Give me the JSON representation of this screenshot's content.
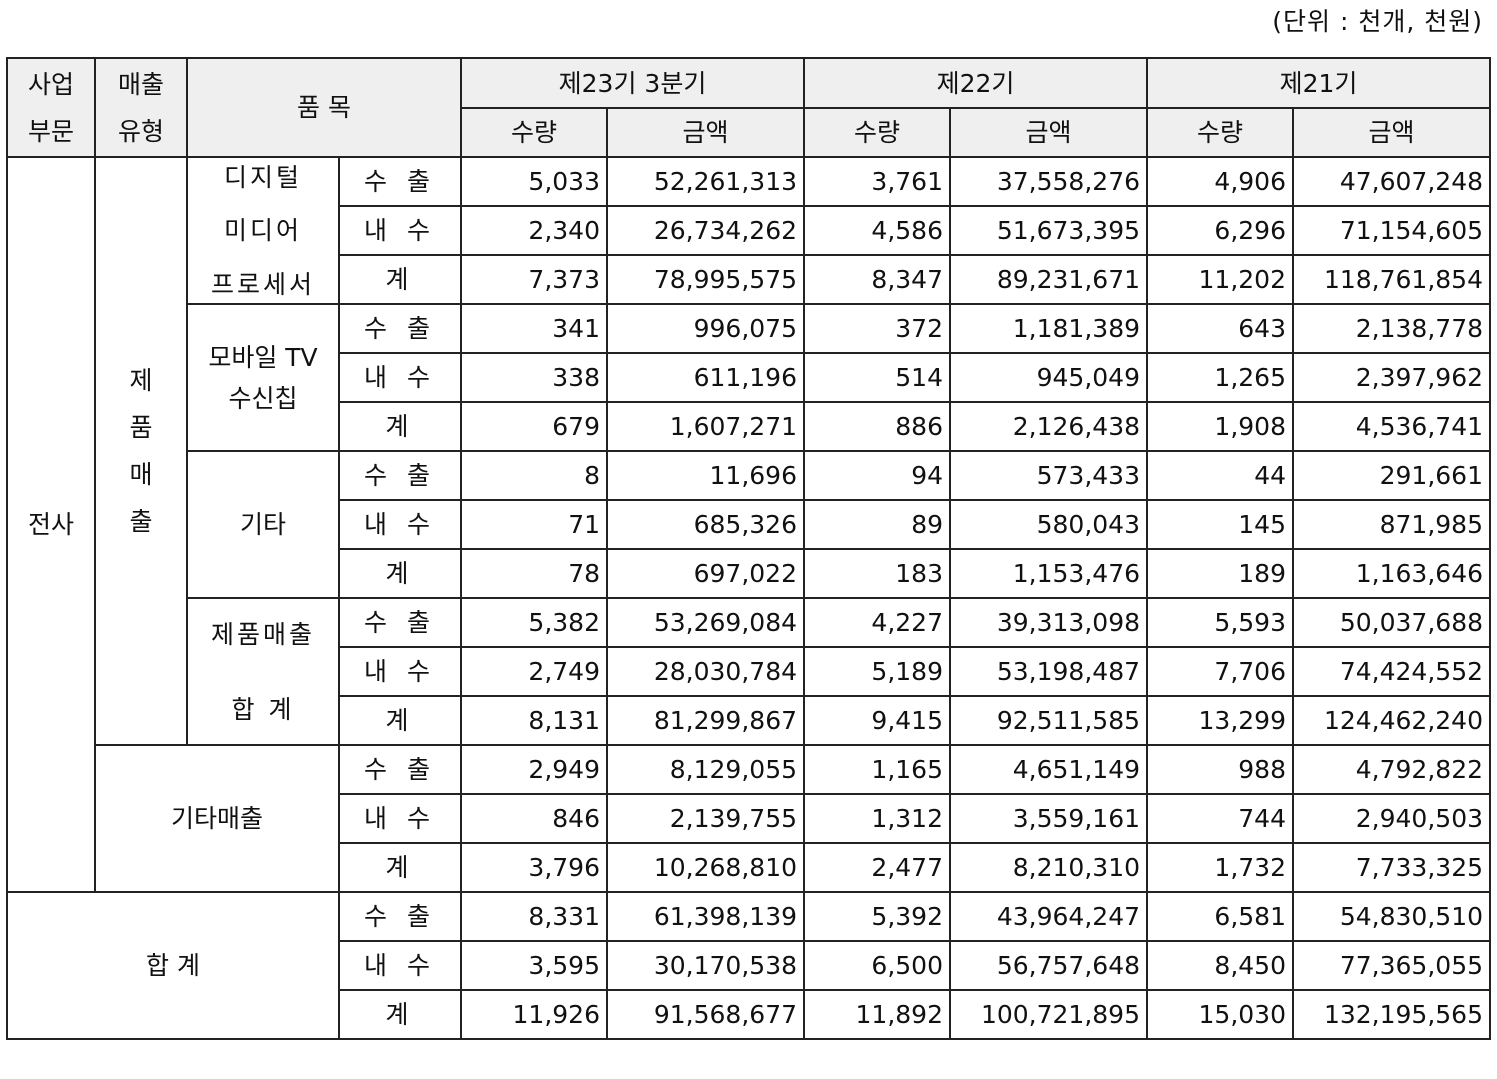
{
  "unit_note": "(단위 : 천개, 천원)",
  "header": {
    "segment_top": "사업",
    "segment_bottom": "부문",
    "type_top": "매출",
    "type_bottom": "유형",
    "item": "품 목",
    "periods": [
      "제23기 3분기",
      "제22기",
      "제21기"
    ],
    "qty": "수량",
    "amt": "금액"
  },
  "labels": {
    "company": "전사",
    "product_sales": [
      "제",
      "품",
      "매",
      "출"
    ],
    "digital": [
      "디지털",
      "미디어",
      "프로세서"
    ],
    "mobile": [
      "모바일 TV",
      "수신칩"
    ],
    "etc": "기타",
    "product_total_top": "제품매출",
    "product_total_bottom": "합 계",
    "other_sales": "기타매출",
    "grand_total": "합 계",
    "export": "수 출",
    "domestic": "내 수",
    "sum": "계"
  },
  "rows": [
    [
      "5,033",
      "52,261,313",
      "3,761",
      "37,558,276",
      "4,906",
      "47,607,248"
    ],
    [
      "2,340",
      "26,734,262",
      "4,586",
      "51,673,395",
      "6,296",
      "71,154,605"
    ],
    [
      "7,373",
      "78,995,575",
      "8,347",
      "89,231,671",
      "11,202",
      "118,761,854"
    ],
    [
      "341",
      "996,075",
      "372",
      "1,181,389",
      "643",
      "2,138,778"
    ],
    [
      "338",
      "611,196",
      "514",
      "945,049",
      "1,265",
      "2,397,962"
    ],
    [
      "679",
      "1,607,271",
      "886",
      "2,126,438",
      "1,908",
      "4,536,741"
    ],
    [
      "8",
      "11,696",
      "94",
      "573,433",
      "44",
      "291,661"
    ],
    [
      "71",
      "685,326",
      "89",
      "580,043",
      "145",
      "871,985"
    ],
    [
      "78",
      "697,022",
      "183",
      "1,153,476",
      "189",
      "1,163,646"
    ],
    [
      "5,382",
      "53,269,084",
      "4,227",
      "39,313,098",
      "5,593",
      "50,037,688"
    ],
    [
      "2,749",
      "28,030,784",
      "5,189",
      "53,198,487",
      "7,706",
      "74,424,552"
    ],
    [
      "8,131",
      "81,299,867",
      "9,415",
      "92,511,585",
      "13,299",
      "124,462,240"
    ],
    [
      "2,949",
      "8,129,055",
      "1,165",
      "4,651,149",
      "988",
      "4,792,822"
    ],
    [
      "846",
      "2,139,755",
      "1,312",
      "3,559,161",
      "744",
      "2,940,503"
    ],
    [
      "3,796",
      "10,268,810",
      "2,477",
      "8,210,310",
      "1,732",
      "7,733,325"
    ],
    [
      "8,331",
      "61,398,139",
      "5,392",
      "43,964,247",
      "6,581",
      "54,830,510"
    ],
    [
      "3,595",
      "30,170,538",
      "6,500",
      "56,757,648",
      "8,450",
      "77,365,055"
    ],
    [
      "11,926",
      "91,568,677",
      "11,892",
      "100,721,895",
      "15,030",
      "132,195,565"
    ]
  ]
}
